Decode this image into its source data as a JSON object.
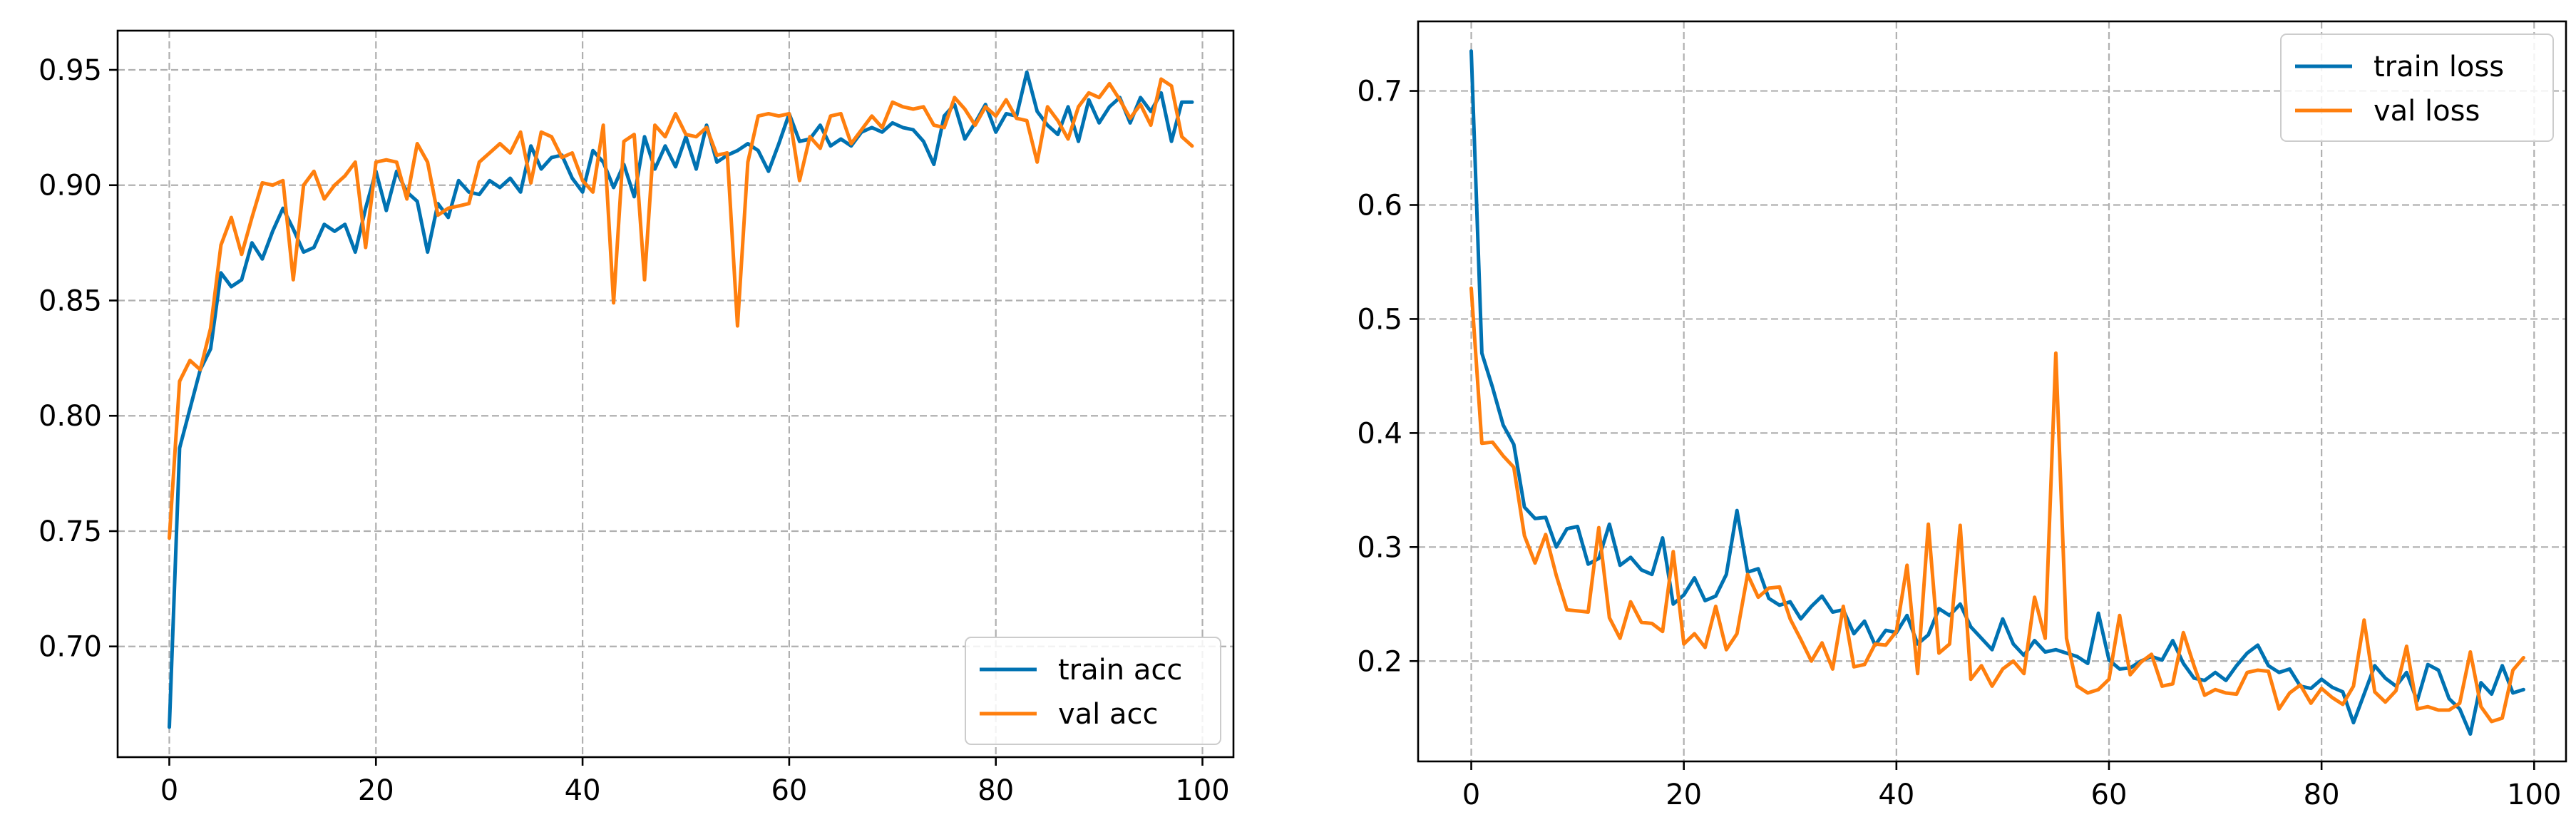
{
  "colors": {
    "train": "#0072b2",
    "val": "#ff7f0e"
  },
  "chart_data": [
    {
      "type": "line",
      "title": "",
      "xlabel": "",
      "ylabel": "",
      "xlim": [
        -5,
        103
      ],
      "ylim": [
        0.652,
        0.967
      ],
      "xticks": [
        0,
        20,
        40,
        60,
        80,
        100
      ],
      "xtick_labels": [
        "0",
        "20",
        "40",
        "60",
        "80",
        "100"
      ],
      "yticks": [
        0.7,
        0.75,
        0.8,
        0.85,
        0.9,
        0.95
      ],
      "ytick_labels": [
        "0.70",
        "0.75",
        "0.80",
        "0.85",
        "0.90",
        "0.95"
      ],
      "grid": true,
      "legend_position": "lower-right",
      "x": [
        0,
        1,
        2,
        3,
        4,
        5,
        6,
        7,
        8,
        9,
        10,
        11,
        12,
        13,
        14,
        15,
        16,
        17,
        18,
        19,
        20,
        21,
        22,
        23,
        24,
        25,
        26,
        27,
        28,
        29,
        30,
        31,
        32,
        33,
        34,
        35,
        36,
        37,
        38,
        39,
        40,
        41,
        42,
        43,
        44,
        45,
        46,
        47,
        48,
        49,
        50,
        51,
        52,
        53,
        54,
        55,
        56,
        57,
        58,
        59,
        60,
        61,
        62,
        63,
        64,
        65,
        66,
        67,
        68,
        69,
        70,
        71,
        72,
        73,
        74,
        75,
        76,
        77,
        78,
        79,
        80,
        81,
        82,
        83,
        84,
        85,
        86,
        87,
        88,
        89,
        90,
        91,
        92,
        93,
        94,
        95,
        96,
        97,
        98,
        99
      ],
      "series": [
        {
          "name": "train acc",
          "color_key": "train",
          "values": [
            0.665,
            0.786,
            0.803,
            0.82,
            0.829,
            0.862,
            0.856,
            0.859,
            0.875,
            0.868,
            0.88,
            0.89,
            0.881,
            0.871,
            0.873,
            0.883,
            0.88,
            0.883,
            0.871,
            0.89,
            0.906,
            0.889,
            0.906,
            0.897,
            0.893,
            0.871,
            0.892,
            0.886,
            0.902,
            0.897,
            0.896,
            0.902,
            0.899,
            0.903,
            0.897,
            0.917,
            0.907,
            0.912,
            0.913,
            0.903,
            0.897,
            0.915,
            0.91,
            0.899,
            0.909,
            0.895,
            0.921,
            0.907,
            0.917,
            0.908,
            0.921,
            0.907,
            0.926,
            0.91,
            0.913,
            0.915,
            0.918,
            0.915,
            0.906,
            0.918,
            0.931,
            0.919,
            0.92,
            0.926,
            0.917,
            0.92,
            0.917,
            0.923,
            0.925,
            0.923,
            0.927,
            0.925,
            0.924,
            0.919,
            0.909,
            0.93,
            0.935,
            0.92,
            0.927,
            0.935,
            0.923,
            0.931,
            0.93,
            0.949,
            0.932,
            0.926,
            0.922,
            0.934,
            0.919,
            0.937,
            0.927,
            0.934,
            0.938,
            0.927,
            0.938,
            0.932,
            0.94,
            0.919,
            0.936,
            0.936
          ]
        },
        {
          "name": "val acc",
          "color_key": "val",
          "values": [
            0.747,
            0.815,
            0.824,
            0.82,
            0.838,
            0.874,
            0.886,
            0.87,
            0.886,
            0.901,
            0.9,
            0.902,
            0.859,
            0.9,
            0.906,
            0.894,
            0.9,
            0.904,
            0.91,
            0.873,
            0.91,
            0.911,
            0.91,
            0.894,
            0.918,
            0.91,
            0.887,
            0.89,
            0.891,
            0.892,
            0.91,
            0.914,
            0.918,
            0.914,
            0.923,
            0.901,
            0.923,
            0.921,
            0.912,
            0.914,
            0.902,
            0.897,
            0.926,
            0.849,
            0.919,
            0.922,
            0.859,
            0.926,
            0.921,
            0.931,
            0.922,
            0.921,
            0.925,
            0.913,
            0.914,
            0.839,
            0.91,
            0.93,
            0.931,
            0.93,
            0.931,
            0.902,
            0.921,
            0.916,
            0.93,
            0.931,
            0.918,
            0.924,
            0.93,
            0.925,
            0.936,
            0.934,
            0.933,
            0.934,
            0.926,
            0.925,
            0.938,
            0.933,
            0.926,
            0.934,
            0.93,
            0.937,
            0.929,
            0.928,
            0.91,
            0.934,
            0.928,
            0.92,
            0.934,
            0.94,
            0.938,
            0.944,
            0.937,
            0.929,
            0.935,
            0.926,
            0.946,
            0.943,
            0.921,
            0.917
          ]
        }
      ]
    },
    {
      "type": "line",
      "title": "",
      "xlabel": "",
      "ylabel": "",
      "xlim": [
        -5,
        103
      ],
      "ylim": [
        0.112,
        0.761
      ],
      "xticks": [
        0,
        20,
        40,
        60,
        80,
        100
      ],
      "xtick_labels": [
        "0",
        "20",
        "40",
        "60",
        "80",
        "100"
      ],
      "yticks": [
        0.2,
        0.3,
        0.4,
        0.5,
        0.6,
        0.7
      ],
      "ytick_labels": [
        "0.2",
        "0.3",
        "0.4",
        "0.5",
        "0.6",
        "0.7"
      ],
      "grid": true,
      "legend_position": "upper-right",
      "x": [
        0,
        1,
        2,
        3,
        4,
        5,
        6,
        7,
        8,
        9,
        10,
        11,
        12,
        13,
        14,
        15,
        16,
        17,
        18,
        19,
        20,
        21,
        22,
        23,
        24,
        25,
        26,
        27,
        28,
        29,
        30,
        31,
        32,
        33,
        34,
        35,
        36,
        37,
        38,
        39,
        40,
        41,
        42,
        43,
        44,
        45,
        46,
        47,
        48,
        49,
        50,
        51,
        52,
        53,
        54,
        55,
        56,
        57,
        58,
        59,
        60,
        61,
        62,
        63,
        64,
        65,
        66,
        67,
        68,
        69,
        70,
        71,
        72,
        73,
        74,
        75,
        76,
        77,
        78,
        79,
        80,
        81,
        82,
        83,
        84,
        85,
        86,
        87,
        88,
        89,
        90,
        91,
        92,
        93,
        94,
        95,
        96,
        97,
        98,
        99
      ],
      "series": [
        {
          "name": "train loss",
          "color_key": "train",
          "values": [
            0.735,
            0.47,
            0.44,
            0.407,
            0.39,
            0.335,
            0.325,
            0.326,
            0.3,
            0.316,
            0.318,
            0.285,
            0.29,
            0.32,
            0.284,
            0.291,
            0.28,
            0.276,
            0.308,
            0.25,
            0.258,
            0.273,
            0.253,
            0.257,
            0.276,
            0.332,
            0.278,
            0.281,
            0.255,
            0.249,
            0.252,
            0.237,
            0.248,
            0.257,
            0.243,
            0.245,
            0.224,
            0.235,
            0.214,
            0.227,
            0.225,
            0.24,
            0.215,
            0.223,
            0.246,
            0.24,
            0.25,
            0.23,
            0.22,
            0.21,
            0.237,
            0.215,
            0.205,
            0.218,
            0.208,
            0.21,
            0.207,
            0.204,
            0.198,
            0.242,
            0.201,
            0.193,
            0.194,
            0.2,
            0.204,
            0.201,
            0.218,
            0.198,
            0.185,
            0.183,
            0.19,
            0.183,
            0.196,
            0.207,
            0.214,
            0.196,
            0.19,
            0.193,
            0.178,
            0.176,
            0.184,
            0.177,
            0.173,
            0.146,
            0.171,
            0.196,
            0.185,
            0.178,
            0.19,
            0.165,
            0.197,
            0.192,
            0.167,
            0.158,
            0.136,
            0.181,
            0.171,
            0.196,
            0.172,
            0.175
          ]
        },
        {
          "name": "val loss",
          "color_key": "val",
          "values": [
            0.527,
            0.391,
            0.392,
            0.38,
            0.37,
            0.31,
            0.286,
            0.311,
            0.275,
            0.245,
            0.244,
            0.243,
            0.317,
            0.238,
            0.22,
            0.252,
            0.234,
            0.233,
            0.226,
            0.296,
            0.215,
            0.224,
            0.212,
            0.248,
            0.21,
            0.224,
            0.276,
            0.256,
            0.264,
            0.265,
            0.237,
            0.219,
            0.2,
            0.216,
            0.193,
            0.248,
            0.195,
            0.197,
            0.215,
            0.214,
            0.226,
            0.284,
            0.189,
            0.32,
            0.207,
            0.215,
            0.319,
            0.184,
            0.196,
            0.178,
            0.193,
            0.2,
            0.189,
            0.256,
            0.22,
            0.47,
            0.22,
            0.178,
            0.172,
            0.175,
            0.184,
            0.24,
            0.188,
            0.199,
            0.206,
            0.178,
            0.18,
            0.225,
            0.196,
            0.17,
            0.175,
            0.172,
            0.171,
            0.19,
            0.192,
            0.191,
            0.158,
            0.172,
            0.179,
            0.163,
            0.176,
            0.168,
            0.162,
            0.178,
            0.236,
            0.173,
            0.164,
            0.174,
            0.213,
            0.158,
            0.16,
            0.157,
            0.157,
            0.163,
            0.208,
            0.16,
            0.147,
            0.15,
            0.192,
            0.203
          ]
        }
      ]
    }
  ]
}
